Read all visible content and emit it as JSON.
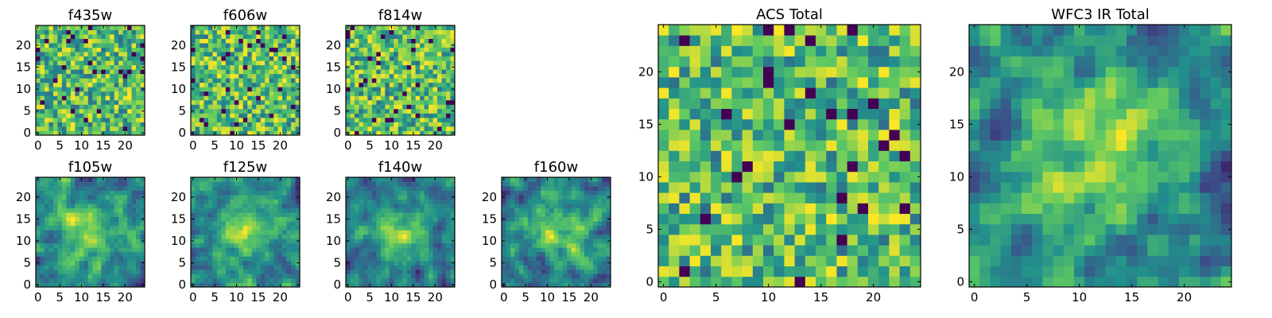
{
  "chart_data": [
    {
      "type": "heatmap",
      "title": "f435w",
      "xlabel": "",
      "ylabel": "",
      "xlim": [
        0,
        24
      ],
      "ylim": [
        0,
        24
      ],
      "xticks": [
        0,
        5,
        10,
        15,
        20
      ],
      "yticks": [
        0,
        5,
        10,
        15,
        20
      ],
      "grid_size": 25,
      "pattern": "noise",
      "seed": 11,
      "colormap": [
        "#440154",
        "#3b528b",
        "#21918c",
        "#5ec962",
        "#fde725"
      ]
    },
    {
      "type": "heatmap",
      "title": "f606w",
      "xlabel": "",
      "ylabel": "",
      "xlim": [
        0,
        24
      ],
      "ylim": [
        0,
        24
      ],
      "xticks": [
        0,
        5,
        10,
        15,
        20
      ],
      "yticks": [
        0,
        5,
        10,
        15,
        20
      ],
      "grid_size": 25,
      "pattern": "noise",
      "seed": 23,
      "colormap": [
        "#440154",
        "#3b528b",
        "#21918c",
        "#5ec962",
        "#fde725"
      ]
    },
    {
      "type": "heatmap",
      "title": "f814w",
      "xlabel": "",
      "ylabel": "",
      "xlim": [
        0,
        24
      ],
      "ylim": [
        0,
        24
      ],
      "xticks": [
        0,
        5,
        10,
        15,
        20
      ],
      "yticks": [
        0,
        5,
        10,
        15,
        20
      ],
      "grid_size": 25,
      "pattern": "noise",
      "seed": 37,
      "colormap": [
        "#440154",
        "#3b528b",
        "#21918c",
        "#5ec962",
        "#fde725"
      ]
    },
    {
      "type": "heatmap",
      "title": "f105w",
      "xlabel": "",
      "ylabel": "",
      "xlim": [
        0,
        24
      ],
      "ylim": [
        0,
        24
      ],
      "xticks": [
        0,
        5,
        10,
        15,
        20
      ],
      "yticks": [
        0,
        5,
        10,
        15,
        20
      ],
      "grid_size": 25,
      "pattern": "smooth-source",
      "seed": 41,
      "colormap": [
        "#440154",
        "#3b528b",
        "#21918c",
        "#5ec962",
        "#fde725"
      ]
    },
    {
      "type": "heatmap",
      "title": "f125w",
      "xlabel": "",
      "ylabel": "",
      "xlim": [
        0,
        24
      ],
      "ylim": [
        0,
        24
      ],
      "xticks": [
        0,
        5,
        10,
        15,
        20
      ],
      "yticks": [
        0,
        5,
        10,
        15,
        20
      ],
      "grid_size": 25,
      "pattern": "smooth-source",
      "seed": 53,
      "colormap": [
        "#440154",
        "#3b528b",
        "#21918c",
        "#5ec962",
        "#fde725"
      ]
    },
    {
      "type": "heatmap",
      "title": "f140w",
      "xlabel": "",
      "ylabel": "",
      "xlim": [
        0,
        24
      ],
      "ylim": [
        0,
        24
      ],
      "xticks": [
        0,
        5,
        10,
        15,
        20
      ],
      "yticks": [
        0,
        5,
        10,
        15,
        20
      ],
      "grid_size": 25,
      "pattern": "smooth-source",
      "seed": 67,
      "colormap": [
        "#440154",
        "#3b528b",
        "#21918c",
        "#5ec962",
        "#fde725"
      ]
    },
    {
      "type": "heatmap",
      "title": "f160w",
      "xlabel": "",
      "ylabel": "",
      "xlim": [
        0,
        24
      ],
      "ylim": [
        0,
        24
      ],
      "xticks": [
        0,
        5,
        10,
        15,
        20
      ],
      "yticks": [
        0,
        5,
        10,
        15,
        20
      ],
      "grid_size": 25,
      "pattern": "smooth-source",
      "seed": 79,
      "colormap": [
        "#440154",
        "#3b528b",
        "#21918c",
        "#5ec962",
        "#fde725"
      ]
    },
    {
      "type": "heatmap",
      "title": "ACS Total",
      "xlabel": "",
      "ylabel": "",
      "xlim": [
        0,
        24
      ],
      "ylim": [
        0,
        24
      ],
      "xticks": [
        0,
        5,
        10,
        15,
        20
      ],
      "yticks": [
        0,
        5,
        10,
        15,
        20
      ],
      "grid_size": 25,
      "pattern": "noise",
      "seed": 97,
      "colormap": [
        "#440154",
        "#3b528b",
        "#21918c",
        "#5ec962",
        "#fde725"
      ]
    },
    {
      "type": "heatmap",
      "title": "WFC3 IR Total",
      "xlabel": "",
      "ylabel": "",
      "xlim": [
        0,
        24
      ],
      "ylim": [
        0,
        24
      ],
      "xticks": [
        0,
        5,
        10,
        15,
        20
      ],
      "yticks": [
        0,
        5,
        10,
        15,
        20
      ],
      "grid_size": 25,
      "pattern": "smooth-source",
      "seed": 113,
      "colormap": [
        "#440154",
        "#3b528b",
        "#21918c",
        "#5ec962",
        "#fde725"
      ]
    }
  ]
}
